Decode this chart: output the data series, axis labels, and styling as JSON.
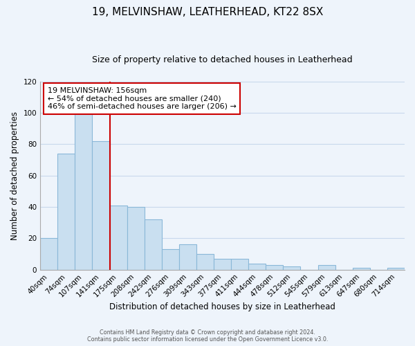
{
  "title": "19, MELVINSHAW, LEATHERHEAD, KT22 8SX",
  "subtitle": "Size of property relative to detached houses in Leatherhead",
  "xlabel": "Distribution of detached houses by size in Leatherhead",
  "ylabel": "Number of detached properties",
  "footer_lines": [
    "Contains HM Land Registry data © Crown copyright and database right 2024.",
    "Contains public sector information licensed under the Open Government Licence v3.0."
  ],
  "bar_labels": [
    "40sqm",
    "74sqm",
    "107sqm",
    "141sqm",
    "175sqm",
    "208sqm",
    "242sqm",
    "276sqm",
    "309sqm",
    "343sqm",
    "377sqm",
    "411sqm",
    "444sqm",
    "478sqm",
    "512sqm",
    "545sqm",
    "579sqm",
    "613sqm",
    "647sqm",
    "680sqm",
    "714sqm"
  ],
  "bar_values": [
    20,
    74,
    100,
    82,
    41,
    40,
    32,
    13,
    16,
    10,
    7,
    7,
    4,
    3,
    2,
    0,
    3,
    0,
    1,
    0,
    1
  ],
  "bar_color": "#c9dff0",
  "bar_edge_color": "#8ab8d8",
  "vline_x": 3.5,
  "vline_color": "#cc0000",
  "annotation_text": "19 MELVINSHAW: 156sqm\n← 54% of detached houses are smaller (240)\n46% of semi-detached houses are larger (206) →",
  "annotation_box_color": "white",
  "annotation_box_edge": "#cc0000",
  "ylim": [
    0,
    120
  ],
  "yticks": [
    0,
    20,
    40,
    60,
    80,
    100,
    120
  ],
  "grid_color": "#c8d8ec",
  "background_color": "#eef4fb",
  "title_fontsize": 11,
  "subtitle_fontsize": 9,
  "xlabel_fontsize": 8.5,
  "ylabel_fontsize": 8.5,
  "tick_fontsize": 7.5,
  "annotation_fontsize": 8.0
}
